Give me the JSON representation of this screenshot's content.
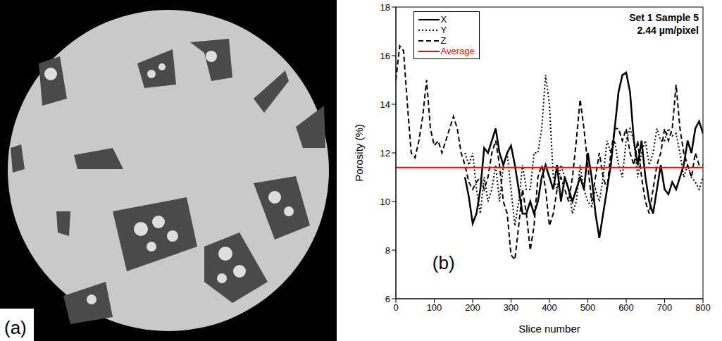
{
  "image_panel": {
    "label": "(a)"
  },
  "chart_data": {
    "type": "line",
    "panel_label": "(b)",
    "annotations": [
      "Set 1 Sample 5",
      "2.44 µm/pixel"
    ],
    "x_label": "Slice number",
    "y_label": "Porosity (%)",
    "xlim": [
      0,
      800
    ],
    "xticks": [
      0,
      100,
      200,
      300,
      400,
      500,
      600,
      700,
      800
    ],
    "ylim": [
      6,
      18
    ],
    "yticks": [
      6,
      8,
      10,
      12,
      14,
      16,
      18
    ],
    "grid": false,
    "legend": "top-left",
    "x": [
      0,
      10,
      20,
      30,
      40,
      50,
      60,
      70,
      80,
      90,
      100,
      110,
      120,
      130,
      140,
      150,
      160,
      170,
      180,
      190,
      200,
      210,
      220,
      230,
      240,
      250,
      260,
      270,
      280,
      290,
      300,
      310,
      320,
      330,
      340,
      350,
      360,
      370,
      380,
      390,
      400,
      410,
      420,
      430,
      440,
      450,
      460,
      470,
      480,
      490,
      500,
      510,
      520,
      530,
      540,
      550,
      560,
      570,
      580,
      590,
      600,
      610,
      620,
      630,
      640,
      650,
      660,
      670,
      680,
      690,
      700,
      710,
      720,
      730,
      740,
      750,
      760,
      770,
      780,
      790,
      800
    ],
    "series": [
      {
        "name": "X",
        "color": "#000000",
        "line_style": "solid",
        "values": [
          null,
          null,
          null,
          null,
          null,
          null,
          null,
          null,
          null,
          null,
          null,
          null,
          null,
          null,
          null,
          null,
          null,
          null,
          11,
          10.2,
          9.1,
          9.5,
          10.5,
          12.2,
          12,
          12.5,
          13,
          12,
          11.5,
          12,
          12.3,
          11.5,
          10.5,
          9.5,
          9.5,
          10,
          9.5,
          10,
          11,
          11.5,
          11,
          10.5,
          11.5,
          10,
          11,
          10.5,
          10,
          10.5,
          11,
          10.5,
          12,
          11,
          9.5,
          8.5,
          9.5,
          10.5,
          11.5,
          13,
          14.5,
          15.2,
          15.3,
          14.5,
          12.5,
          11.5,
          12.5,
          11,
          10,
          9.5,
          10.5,
          11.5,
          10.5,
          10.3,
          10.8,
          10.5,
          11,
          11.5,
          12.5,
          12,
          13,
          13.3,
          12.8
        ]
      },
      {
        "name": "Y",
        "color": "#000000",
        "line_style": "dotted",
        "values": [
          null,
          null,
          null,
          null,
          null,
          null,
          null,
          null,
          null,
          null,
          null,
          null,
          null,
          null,
          null,
          null,
          null,
          null,
          12,
          11.5,
          12,
          10.5,
          9.5,
          11,
          10,
          10.5,
          11.5,
          10,
          11.5,
          12,
          10.5,
          9,
          10,
          11.5,
          10.5,
          10.5,
          12,
          12,
          13,
          15.2,
          14,
          11,
          10.5,
          11.5,
          11,
          10.5,
          9.5,
          10,
          11.5,
          10.5,
          10,
          9.8,
          10.5,
          10,
          11,
          12.5,
          12,
          12.5,
          11.5,
          11,
          12.5,
          13,
          12.5,
          11,
          12,
          12.5,
          11.5,
          12,
          13,
          12.5,
          12.5,
          13,
          12.7,
          12.8,
          12,
          11,
          11.5,
          11,
          10.8,
          10.5,
          11
        ]
      },
      {
        "name": "Z",
        "color": "#000000",
        "line_style": "dashed",
        "values": [
          15,
          16.4,
          16.2,
          14,
          12,
          11.8,
          12.5,
          13.5,
          15,
          13,
          12.3,
          12.5,
          12,
          12.5,
          13,
          13.5,
          13,
          12,
          11.5,
          10.8,
          10.5,
          10.8,
          11,
          10.5,
          11,
          12,
          12.5,
          11.5,
          10,
          9.5,
          7.8,
          7.6,
          9,
          10.5,
          9.5,
          8,
          9,
          11,
          11.5,
          10.5,
          9,
          9.5,
          10.5,
          11,
          10.5,
          10,
          11,
          12.5,
          14.2,
          13,
          11.5,
          10,
          11,
          12,
          11,
          10.5,
          12,
          13,
          13,
          12.5,
          13,
          12,
          11.5,
          12.5,
          11,
          10,
          9.5,
          10.5,
          11.5,
          12,
          13,
          12.5,
          13,
          14.8,
          13,
          12,
          11.5,
          11,
          12,
          11.5,
          11.5
        ]
      },
      {
        "name": "Average",
        "color": "#ff0000",
        "line_style": "solid",
        "x": [
          0,
          800
        ],
        "values": [
          11.4,
          11.4
        ]
      }
    ]
  }
}
